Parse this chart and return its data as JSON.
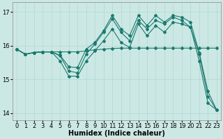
{
  "xlabel": "Humidex (Indice chaleur)",
  "bg_color": "#cce8e4",
  "line_color": "#1a7a6e",
  "grid_color": "#b0d8d4",
  "xlim": [
    -0.5,
    23.5
  ],
  "ylim": [
    13.8,
    17.3
  ],
  "yticks": [
    14,
    15,
    16,
    17
  ],
  "xticks": [
    0,
    1,
    2,
    3,
    4,
    5,
    6,
    7,
    8,
    9,
    10,
    11,
    12,
    13,
    14,
    15,
    16,
    17,
    18,
    19,
    20,
    21,
    22,
    23
  ],
  "series": [
    {
      "x": [
        0,
        1,
        2,
        3,
        4,
        5,
        6,
        7,
        8,
        9,
        10,
        11,
        12,
        13,
        14,
        15,
        16,
        17,
        18,
        19,
        20,
        21,
        22,
        23
      ],
      "y": [
        15.9,
        15.75,
        15.8,
        15.82,
        15.82,
        15.82,
        15.82,
        15.82,
        15.85,
        15.88,
        15.9,
        15.92,
        15.93,
        15.93,
        15.93,
        15.93,
        15.93,
        15.93,
        15.93,
        15.93,
        15.93,
        15.93,
        15.93,
        15.93
      ]
    },
    {
      "x": [
        0,
        1,
        2,
        3,
        4,
        5,
        6,
        7,
        8,
        9,
        10,
        11,
        12,
        13,
        14,
        15,
        16,
        17,
        18,
        19,
        20,
        21,
        22,
        23
      ],
      "y": [
        15.9,
        15.75,
        15.8,
        15.82,
        15.82,
        15.7,
        15.25,
        15.2,
        15.75,
        16.05,
        16.4,
        16.8,
        16.4,
        16.15,
        16.75,
        16.5,
        16.75,
        16.65,
        16.85,
        16.75,
        16.55,
        15.75,
        14.5,
        14.1
      ]
    },
    {
      "x": [
        0,
        1,
        2,
        3,
        4,
        5,
        6,
        7,
        8,
        9,
        10,
        11,
        12,
        13,
        14,
        15,
        16,
        17,
        18,
        19,
        20,
        21,
        22,
        23
      ],
      "y": [
        15.9,
        15.75,
        15.8,
        15.82,
        15.82,
        15.55,
        15.1,
        15.1,
        15.55,
        15.85,
        16.15,
        16.5,
        16.1,
        15.95,
        16.65,
        16.3,
        16.6,
        16.4,
        16.7,
        16.65,
        16.55,
        15.55,
        14.3,
        14.1
      ]
    },
    {
      "x": [
        0,
        1,
        2,
        3,
        4,
        5,
        6,
        7,
        8,
        9,
        10,
        11,
        12,
        13,
        14,
        15,
        16,
        17,
        18,
        19,
        20,
        21,
        22,
        23
      ],
      "y": [
        15.9,
        15.75,
        15.8,
        15.82,
        15.82,
        15.72,
        15.38,
        15.35,
        15.9,
        16.1,
        16.45,
        16.9,
        16.5,
        16.3,
        16.9,
        16.6,
        16.9,
        16.7,
        16.9,
        16.85,
        16.7,
        15.8,
        14.65,
        14.1
      ]
    }
  ],
  "marker": "D",
  "markersize": 2.0,
  "linewidth": 0.8,
  "fontsize_label": 7,
  "fontsize_tick": 6
}
